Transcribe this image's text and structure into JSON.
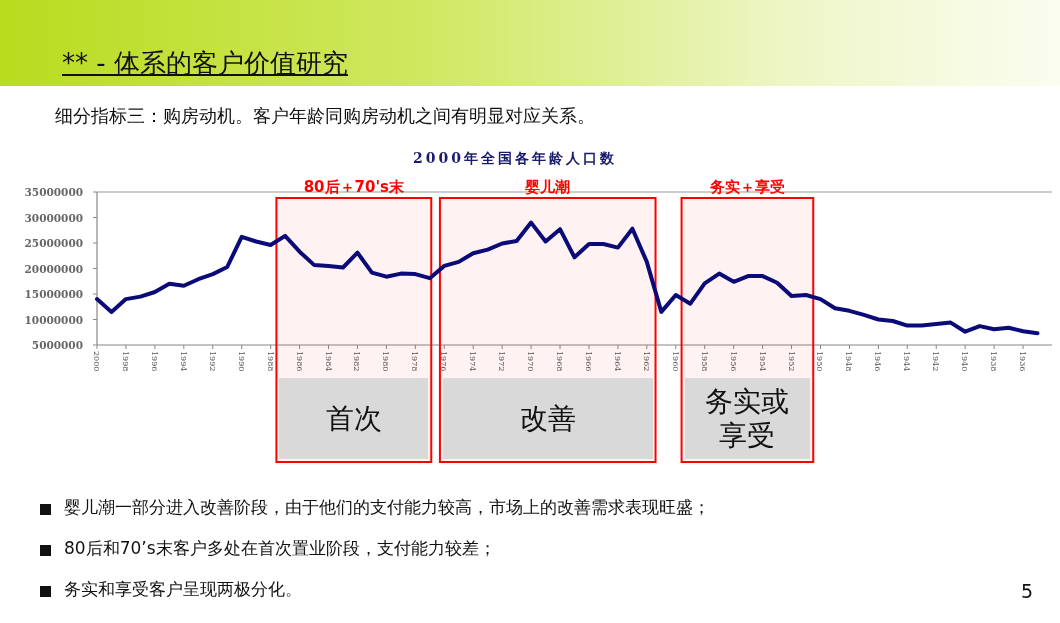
{
  "chart_data": {
    "type": "line",
    "title": "2000年全国各年龄人口数",
    "subtitle": "细分指标三：购房动机。客户年龄同购房动机之间有明显对应关系。",
    "x": [
      2000,
      1999,
      1998,
      1997,
      1996,
      1995,
      1994,
      1993,
      1992,
      1991,
      1990,
      1989,
      1988,
      1987,
      1986,
      1985,
      1984,
      1983,
      1982,
      1981,
      1980,
      1979,
      1978,
      1977,
      1976,
      1975,
      1974,
      1973,
      1972,
      1971,
      1970,
      1969,
      1968,
      1967,
      1966,
      1965,
      1964,
      1963,
      1962,
      1961,
      1960,
      1959,
      1958,
      1957,
      1956,
      1955,
      1954,
      1953,
      1952,
      1951,
      1950,
      1949,
      1948,
      1947,
      1946,
      1945,
      1944,
      1943,
      1942,
      1941,
      1940,
      1939,
      1938,
      1937,
      1936,
      1935
    ],
    "series": [
      {
        "color": "#0a0a78",
        "values": [
          14000000,
          11500000,
          14000000,
          14500000,
          15400000,
          17000000,
          16600000,
          17900000,
          18900000,
          20300000,
          26200000,
          25300000,
          24600000,
          26400000,
          23300000,
          20700000,
          20500000,
          20200000,
          23100000,
          19200000,
          18400000,
          19000000,
          18900000,
          18100000,
          20500000,
          21300000,
          23000000,
          23700000,
          24900000,
          25400000,
          29000000,
          25300000,
          27700000,
          22200000,
          24800000,
          24800000,
          24100000,
          27800000,
          21300000,
          11500000,
          14800000,
          13100000,
          17100000,
          19000000,
          17400000,
          18500000,
          18500000,
          17200000,
          14600000,
          14800000,
          14000000,
          12200000,
          11700000,
          10900000,
          10000000,
          9700000,
          8800000,
          8800000,
          9100000,
          9400000,
          7600000,
          8700000,
          8100000,
          8400000,
          7700000,
          7300000
        ]
      }
    ],
    "xlim": [
      2000,
      1934
    ],
    "xticks": [
      2000,
      1998,
      1996,
      1994,
      1992,
      1990,
      1988,
      1986,
      1984,
      1982,
      1980,
      1978,
      1976,
      1974,
      1972,
      1970,
      1968,
      1966,
      1964,
      1962,
      1960,
      1958,
      1956,
      1954,
      1952,
      1950,
      1948,
      1946,
      1944,
      1942,
      1940,
      1938,
      1936
    ],
    "ylim": [
      5000000,
      35000000
    ],
    "yticks": [
      5000000,
      10000000,
      15000000,
      20000000,
      25000000,
      30000000,
      35000000
    ],
    "grid": false,
    "bands": [
      {
        "axis": "x",
        "from": 1987.6,
        "to": 1976.9,
        "label": "80后＋70's末",
        "color": "#ff0000"
      },
      {
        "axis": "x",
        "from": 1976.3,
        "to": 1961.4,
        "label": "婴儿潮",
        "color": "#ff0000"
      },
      {
        "axis": "x",
        "from": 1959.6,
        "to": 1950.5,
        "label": "务实＋享受",
        "color": "#ff0000"
      }
    ],
    "annotations": [
      "** - 体系的客户价值研究",
      "首次",
      "改善",
      "务实或享受",
      "婴儿潮一部分进入改善阶段，由于他们的支付能力较高，市场上的改善需求表现旺盛；",
      "80后和70’s末客户多处在首次置业阶段，支付能力较差；",
      "务实和享受客户呈现两极分化。",
      "5"
    ]
  }
}
